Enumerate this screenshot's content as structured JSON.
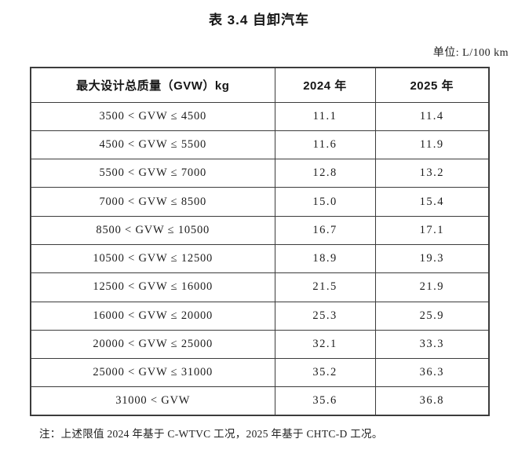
{
  "page": {
    "title": "表 3.4 自卸汽车",
    "unit_label": "单位: L/100 km",
    "note": "注：上述限值 2024 年基于 C-WTVC 工况，2025 年基于 CHTC-D 工况。"
  },
  "table": {
    "columns": [
      "最大设计总质量（GVW）kg",
      "2024 年",
      "2025 年"
    ],
    "rows": [
      [
        "3500 < GVW ≤ 4500",
        "11.1",
        "11.4"
      ],
      [
        "4500 < GVW ≤ 5500",
        "11.6",
        "11.9"
      ],
      [
        "5500 < GVW ≤ 7000",
        "12.8",
        "13.2"
      ],
      [
        "7000 < GVW ≤ 8500",
        "15.0",
        "15.4"
      ],
      [
        "8500 < GVW ≤ 10500",
        "16.7",
        "17.1"
      ],
      [
        "10500 < GVW ≤ 12500",
        "18.9",
        "19.3"
      ],
      [
        "12500 < GVW ≤ 16000",
        "21.5",
        "21.9"
      ],
      [
        "16000 < GVW ≤ 20000",
        "25.3",
        "25.9"
      ],
      [
        "20000 < GVW ≤ 25000",
        "32.1",
        "33.3"
      ],
      [
        "25000 < GVW ≤ 31000",
        "35.2",
        "36.3"
      ],
      [
        "31000 < GVW",
        "35.6",
        "36.8"
      ]
    ]
  }
}
